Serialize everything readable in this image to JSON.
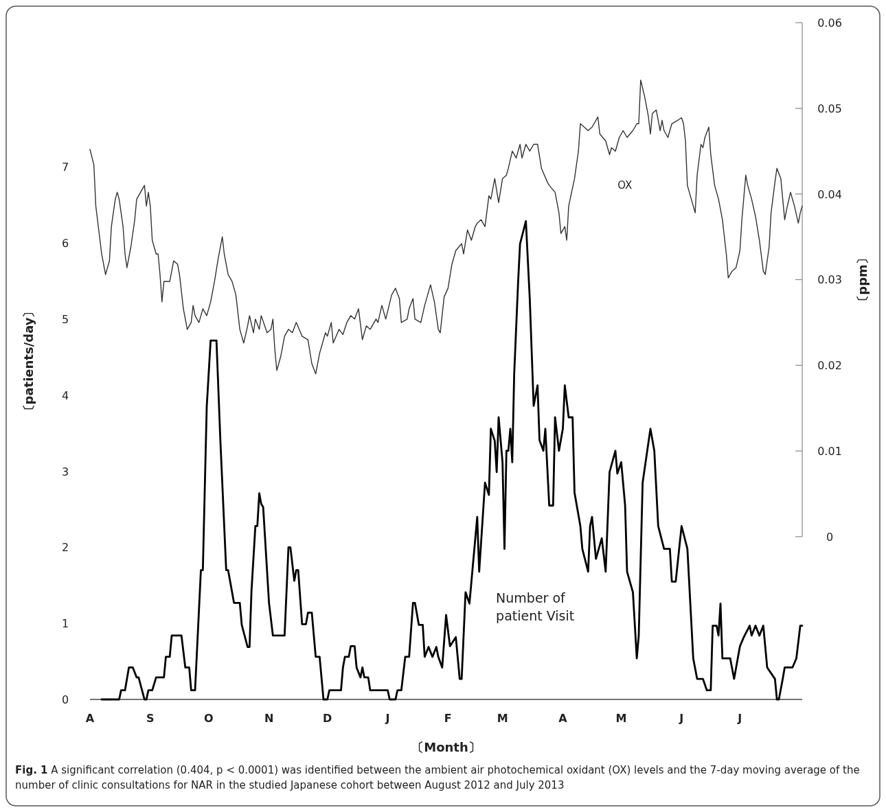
{
  "chart_data": {
    "type": "line",
    "xlabel": "〔Month〕",
    "ylabel": "〔patients/day〕",
    "y2label": "〔ppm〕",
    "categories": [
      "A",
      null,
      null,
      null,
      null,
      null,
      null,
      null,
      null,
      null,
      null,
      null,
      null,
      null,
      null,
      null,
      null,
      null,
      null,
      null,
      null,
      null,
      null,
      null,
      null,
      null,
      null,
      null,
      null,
      null,
      null,
      "S",
      null,
      null,
      null,
      null,
      null,
      null,
      null,
      null,
      null,
      null,
      null,
      null,
      null,
      null,
      null,
      null,
      null,
      null,
      null,
      null,
      null,
      null,
      null,
      null,
      null,
      null,
      null,
      null,
      null,
      "O",
      null,
      null,
      null,
      null,
      null,
      null,
      null,
      null,
      null,
      null,
      null,
      null,
      null,
      null,
      null,
      null,
      null,
      null,
      null,
      null,
      null,
      null,
      null,
      null,
      null,
      null,
      null,
      null,
      null,
      null,
      "N",
      null,
      null,
      null,
      null,
      null,
      null,
      null,
      null,
      null,
      null,
      null,
      null,
      null,
      null,
      null,
      null,
      null,
      null,
      null,
      null,
      null,
      null,
      null,
      null,
      null,
      null,
      null,
      null,
      null,
      "D",
      null,
      null,
      null,
      null,
      null,
      null,
      null,
      null,
      null,
      null,
      null,
      null,
      null,
      null,
      null,
      null,
      null,
      null,
      null,
      null,
      null,
      null,
      null,
      null,
      null,
      null,
      null,
      null,
      null,
      null,
      "J",
      null,
      null,
      null,
      null,
      null,
      null,
      null,
      null,
      null,
      null,
      null,
      null,
      null,
      null,
      null,
      null,
      null,
      null,
      null,
      null,
      null,
      null,
      null,
      null,
      null,
      null,
      null,
      null,
      null,
      null,
      "F",
      null,
      null,
      null,
      null,
      null,
      null,
      null,
      null,
      null,
      null,
      null,
      null,
      null,
      null,
      null,
      null,
      null,
      null,
      null,
      null,
      null,
      null,
      null,
      null,
      null,
      null,
      null,
      "M",
      null,
      null,
      null,
      null,
      null,
      null,
      null,
      null,
      null,
      null,
      null,
      null,
      null,
      null,
      null,
      null,
      null,
      null,
      null,
      null,
      null,
      null,
      null,
      null,
      null,
      null,
      null,
      null,
      null,
      null,
      "A",
      null,
      null,
      null,
      null,
      null,
      null,
      null,
      null,
      null,
      null,
      null,
      null,
      null,
      null,
      null,
      null,
      null,
      null,
      null,
      null,
      null,
      null,
      null,
      null,
      null,
      null,
      null,
      null,
      null,
      "M",
      null,
      null,
      null,
      null,
      null,
      null,
      null,
      null,
      null,
      null,
      null,
      null,
      null,
      null,
      null,
      null,
      null,
      null,
      null,
      null,
      null,
      null,
      null,
      null,
      null,
      null,
      null,
      null,
      null,
      null,
      "J",
      null,
      null,
      null,
      null,
      null,
      null,
      null,
      null,
      null,
      null,
      null,
      null,
      null,
      null,
      null,
      null,
      null,
      null,
      null,
      null,
      null,
      null,
      null,
      null,
      null,
      null,
      null,
      null,
      null,
      "J",
      null,
      null,
      null,
      null,
      null,
      null,
      null,
      null,
      null,
      null,
      null,
      null,
      null,
      null,
      null,
      null,
      null,
      null,
      null,
      null,
      null,
      null,
      null,
      null,
      null,
      null,
      null,
      null,
      null,
      null,
      null,
      null
    ],
    "ylim": [
      0,
      8.9
    ],
    "yticks": [
      0,
      1,
      2,
      3,
      4,
      5,
      6,
      7
    ],
    "y2lim": [
      -0.019,
      0.06
    ],
    "y2ticks": [
      0,
      0.01,
      0.02,
      0.03,
      0.04,
      0.05,
      0.06
    ],
    "grid": false,
    "legend": false,
    "marker": "none",
    "line_style": "solid",
    "series": [
      {
        "name": "OX",
        "color": "#333333",
        "axis": "y2",
        "values": [
          0.0452,
          null,
          0.0434,
          0.0386,
          null,
          null,
          0.033,
          null,
          0.0306,
          null,
          0.0322,
          0.0362,
          null,
          0.0394,
          0.0402,
          0.0394,
          null,
          0.0362,
          0.033,
          0.0314,
          null,
          0.0338,
          null,
          0.037,
          0.0394,
          null,
          0.0402,
          null,
          0.041,
          0.0386,
          0.0402,
          0.0386,
          0.0346,
          null,
          0.033,
          0.033,
          0.0306,
          0.0274,
          0.0298,
          null,
          0.0298,
          0.0298,
          null,
          0.0322,
          null,
          0.0318,
          0.0306,
          null,
          0.0266,
          null,
          0.0242,
          null,
          0.025,
          0.027,
          0.0258,
          null,
          0.025,
          null,
          0.0266,
          null,
          0.0258,
          null,
          0.0274,
          null,
          0.0298,
          null,
          0.0326,
          null,
          0.035,
          0.033,
          null,
          0.0306,
          null,
          0.0298,
          null,
          0.0282,
          null,
          0.0242,
          null,
          0.0226,
          null,
          0.0246,
          0.0258,
          null,
          0.0238,
          0.0254,
          null,
          0.0242,
          0.0258,
          null,
          null,
          0.0238,
          null,
          0.0242,
          0.0254,
          0.0218,
          0.0194,
          null,
          0.021,
          null,
          0.0234,
          null,
          0.0242,
          null,
          0.0238,
          null,
          0.025,
          null,
          null,
          0.0234,
          null,
          null,
          0.023,
          null,
          0.0202,
          null,
          0.019,
          null,
          0.0214,
          null,
          null,
          0.0238,
          0.0234,
          null,
          0.025,
          0.0226,
          null,
          null,
          0.0242,
          null,
          0.0236,
          null,
          0.025,
          null,
          0.0258,
          null,
          0.0254,
          null,
          0.0266,
          null,
          0.023,
          null,
          0.0246,
          null,
          0.0242,
          null,
          null,
          0.0254,
          0.025,
          null,
          0.027,
          null,
          0.0254,
          null,
          null,
          0.0282,
          null,
          0.029,
          null,
          0.0278,
          0.025,
          null,
          null,
          0.0254,
          0.0266,
          null,
          0.0278,
          0.0254,
          null,
          null,
          0.025,
          null,
          0.027,
          null,
          0.0286,
          0.0294,
          null,
          0.0274,
          null,
          0.0242,
          0.0238,
          null,
          0.028,
          null,
          0.029,
          null,
          0.0318,
          null,
          0.0334,
          null,
          null,
          0.0342,
          0.033,
          null,
          0.0358,
          null,
          0.0346,
          null,
          0.0362,
          0.0366,
          null,
          0.037,
          null,
          0.0362,
          null,
          0.0398,
          0.0394,
          null,
          0.0418,
          null,
          0.039,
          null,
          0.0418,
          null,
          0.0422,
          0.043,
          null,
          0.045,
          null,
          0.0442,
          null,
          0.0458,
          0.0442,
          null,
          0.0458,
          null,
          0.045,
          null,
          0.0458,
          null,
          0.0458,
          null,
          0.043,
          null,
          null,
          0.0414,
          0.041,
          null,
          null,
          0.0402,
          null,
          0.0378,
          0.0354,
          null,
          0.0362,
          0.0346,
          0.0386,
          null,
          null,
          0.0418,
          null,
          0.045,
          0.0482,
          null,
          0.0478,
          null,
          0.0474,
          null,
          0.0478,
          null,
          null,
          0.049,
          0.047,
          null,
          null,
          0.0462,
          null,
          0.0446,
          0.0454,
          null,
          0.045,
          null,
          0.0466,
          null,
          0.0474,
          null,
          0.0466,
          null,
          null,
          0.0474,
          null,
          0.0482,
          0.0482,
          0.0533,
          null,
          0.0514,
          null,
          0.049,
          0.047,
          0.0494,
          null,
          0.0498,
          null,
          0.0474,
          0.0486,
          0.0474,
          null,
          0.0466,
          null,
          0.0482,
          null,
          null,
          0.0486,
          null,
          0.0489,
          0.0482,
          0.0462,
          0.041,
          null,
          0.0394,
          null,
          0.0378,
          0.0422,
          null,
          0.0458,
          0.0454,
          0.0466,
          null,
          0.0478,
          0.0446,
          null,
          0.041,
          null,
          0.0394,
          null,
          0.037,
          null,
          0.033,
          0.0302,
          null,
          0.031,
          null,
          0.0314,
          null,
          0.0334,
          0.037,
          null,
          0.0422,
          0.041,
          null,
          0.0394,
          null,
          0.0374,
          null,
          0.0346,
          null,
          0.031,
          0.0306,
          null,
          0.0338,
          0.0378,
          null,
          0.0414,
          0.043,
          null,
          0.0418,
          null,
          0.037,
          0.0382,
          null,
          0.0402,
          null,
          0.0386,
          null,
          0.0366,
          0.0378,
          0.0386
        ]
      },
      {
        "name": "Number of patient Visit",
        "color": "#000000",
        "axis": "y",
        "values": [
          null,
          null,
          null,
          null,
          null,
          null,
          0,
          null,
          null,
          null,
          null,
          null,
          null,
          null,
          null,
          0,
          0.12,
          null,
          0.12,
          null,
          0.42,
          null,
          0.42,
          null,
          0.29,
          0.29,
          null,
          null,
          0,
          0,
          0.12,
          null,
          0.12,
          null,
          0.29,
          null,
          null,
          null,
          0.29,
          0.56,
          null,
          0.56,
          0.84,
          null,
          null,
          null,
          null,
          0.84,
          null,
          0.42,
          null,
          0.42,
          0.12,
          null,
          0.12,
          null,
          null,
          1.7,
          1.7,
          null,
          3.85,
          null,
          4.72,
          null,
          null,
          4.72,
          null,
          3.41,
          null,
          null,
          1.7,
          1.7,
          null,
          null,
          1.27,
          null,
          null,
          1.27,
          0.98,
          null,
          null,
          0.69,
          0.69,
          1.43,
          null,
          2.28,
          2.28,
          2.71,
          2.57,
          2.53,
          null,
          null,
          1.27,
          null,
          0.84,
          null,
          null,
          null,
          null,
          null,
          0.84,
          null,
          2,
          2,
          null,
          1.56,
          1.7,
          1.7,
          null,
          0.99,
          null,
          0.99,
          1.14,
          null,
          1.14,
          null,
          0.56,
          null,
          0.56,
          null,
          0,
          null,
          0,
          0.12,
          null,
          null,
          null,
          null,
          null,
          0.12,
          0.42,
          0.56,
          null,
          0.56,
          0.7,
          null,
          0.7,
          0.42,
          null,
          0.29,
          0.42,
          0.29,
          null,
          0.29,
          0.12,
          null,
          null,
          null,
          null,
          null,
          null,
          null,
          null,
          0.12,
          0,
          null,
          null,
          0,
          0.12,
          null,
          0.12,
          null,
          0.56,
          null,
          0.56,
          null,
          1.27,
          1.27,
          null,
          0.98,
          null,
          0.98,
          0.56,
          null,
          0.69,
          null,
          0.56,
          null,
          0.69,
          0.56,
          null,
          0.42,
          null,
          1.11,
          null,
          0.7,
          null,
          null,
          0.82,
          null,
          0.27,
          0.27,
          null,
          1.41,
          null,
          1.26,
          null,
          null,
          null,
          2.4,
          1.68,
          null,
          null,
          2.85,
          null,
          2.69,
          3.56,
          null,
          3.4,
          2.99,
          3.71,
          null,
          3.12,
          1.98,
          3.27,
          3.27,
          3.56,
          3.12,
          4.28,
          null,
          5.48,
          5.99,
          null,
          null,
          6.29,
          null,
          5.27,
          null,
          3.86,
          null,
          4.13,
          3.41,
          null,
          3.27,
          3.56,
          null,
          2.55,
          null,
          2.55,
          3.71,
          null,
          3.27,
          null,
          3.56,
          4.13,
          null,
          3.71,
          null,
          3.71,
          2.72,
          null,
          null,
          2.28,
          1.98,
          null,
          null,
          1.68,
          2.28,
          2.4,
          null,
          1.85,
          null,
          null,
          2.12,
          null,
          1.68,
          null,
          2.99,
          null,
          null,
          3.27,
          2.97,
          null,
          3.12,
          null,
          2.55,
          1.68,
          null,
          null,
          1.41,
          null,
          0.54,
          0.84,
          null,
          2.85,
          null,
          null,
          null,
          3.56,
          null,
          3.27,
          null,
          2.28,
          null,
          null,
          1.98,
          null,
          null,
          1.98,
          1.55,
          null,
          1.55,
          null,
          null,
          2.28,
          null,
          null,
          1.98,
          null,
          null,
          0.54,
          null,
          0.27,
          null,
          null,
          0.27,
          null,
          0.12,
          null,
          0.12,
          0.97,
          null,
          0.97,
          0.84,
          1.26,
          0.54,
          null,
          null,
          null,
          0.54,
          null,
          0.27,
          null,
          null,
          0.7,
          null,
          0.82,
          null,
          null,
          0.97,
          0.84,
          null,
          0.97,
          null,
          0.84,
          null,
          0.97,
          null,
          0.42,
          null,
          null,
          null,
          0.27,
          0,
          0,
          null,
          0.27,
          0.42,
          null,
          null,
          null,
          0.42,
          null,
          0.54,
          null,
          0.97,
          0.97
        ]
      }
    ],
    "annotations": [
      "Fig. 1 A significant correlation (0.404, p < 0.0001) was identified between the ambient air photochemical oxidant (OX) levels and the 7-day moving average of the number of clinic consultations for NAR in the studied Japanese cohort between August 2012 and July 2013"
    ]
  }
}
